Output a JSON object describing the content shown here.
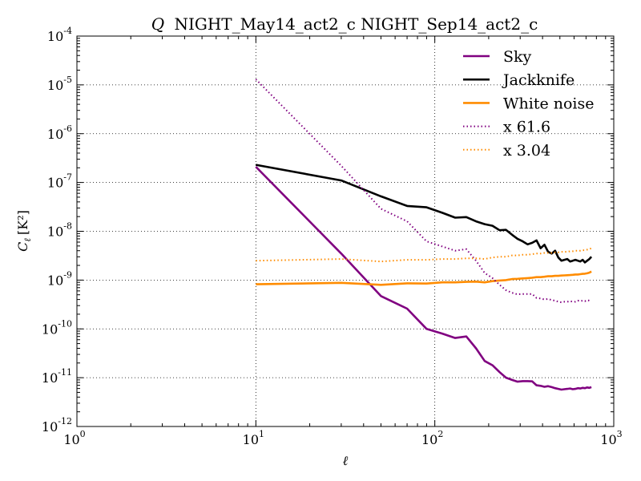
{
  "chart_data": {
    "type": "line",
    "title": "Q NIGHT_May14_act2_c NIGHT_Sep14_act2_c",
    "title_symbol": "Q",
    "title_text": "NIGHT_May14_act2_c NIGHT_Sep14_act2_c",
    "xlabel": "ℓ",
    "ylabel": "C_ℓ [K²]",
    "ylabel_main": "C",
    "ylabel_sub": "ℓ",
    "ylabel_unit": "[K²]",
    "xscale": "log",
    "yscale": "log",
    "xlim": [
      1,
      1000
    ],
    "ylim": [
      1e-12,
      0.0001
    ],
    "x_ticks": [
      {
        "base": "10",
        "exp": "0",
        "value": 1
      },
      {
        "base": "10",
        "exp": "1",
        "value": 10
      },
      {
        "base": "10",
        "exp": "2",
        "value": 100
      },
      {
        "base": "10",
        "exp": "3",
        "value": 1000
      }
    ],
    "y_ticks": [
      {
        "base": "10",
        "exp": "-12",
        "value": 1e-12
      },
      {
        "base": "10",
        "exp": "-11",
        "value": 1e-11
      },
      {
        "base": "10",
        "exp": "-10",
        "value": 1e-10
      },
      {
        "base": "10",
        "exp": "-9",
        "value": 1e-09
      },
      {
        "base": "10",
        "exp": "-8",
        "value": 1e-08
      },
      {
        "base": "10",
        "exp": "-7",
        "value": 1e-07
      },
      {
        "base": "10",
        "exp": "-6",
        "value": 1e-06
      },
      {
        "base": "10",
        "exp": "-5",
        "value": 1e-05
      },
      {
        "base": "10",
        "exp": "-4",
        "value": 0.0001
      }
    ],
    "grid": true,
    "legend_position": "top-right",
    "series": [
      {
        "name": "Sky",
        "color": "#800080",
        "style": "solid",
        "x": [
          10,
          30,
          50,
          70,
          90,
          110,
          130,
          150,
          170,
          190,
          210,
          230,
          250,
          270,
          290,
          310,
          330,
          350,
          370,
          390,
          410,
          430,
          450,
          470,
          490,
          510,
          530,
          550,
          570,
          590,
          610,
          630,
          650,
          670,
          690,
          710,
          730,
          750
        ],
        "y": [
          2.1e-07,
          3.5e-09,
          4.7e-10,
          2.6e-10,
          1e-10,
          8e-11,
          6.5e-11,
          7e-11,
          4e-11,
          2.2e-11,
          1.8e-11,
          1.3e-11,
          1e-11,
          9e-12,
          8.3e-12,
          8.5e-12,
          8.5e-12,
          8.4e-12,
          7e-12,
          6.8e-12,
          6.5e-12,
          6.7e-12,
          6.4e-12,
          6.1e-12,
          5.9e-12,
          5.7e-12,
          5.8e-12,
          5.9e-12,
          6e-12,
          5.8e-12,
          5.9e-12,
          6.1e-12,
          6e-12,
          6.2e-12,
          6.1e-12,
          6.3e-12,
          6.2e-12,
          6.4e-12
        ]
      },
      {
        "name": "Jackknife",
        "color": "#000000",
        "style": "solid",
        "x": [
          10,
          30,
          50,
          70,
          90,
          110,
          130,
          150,
          170,
          190,
          210,
          230,
          250,
          270,
          290,
          310,
          330,
          350,
          370,
          390,
          410,
          430,
          450,
          470,
          490,
          510,
          530,
          550,
          570,
          590,
          610,
          630,
          650,
          670,
          690,
          710,
          730,
          750
        ],
        "y": [
          2.3e-07,
          1.1e-07,
          5.2e-08,
          3.3e-08,
          3.1e-08,
          2.4e-08,
          1.9e-08,
          1.95e-08,
          1.6e-08,
          1.4e-08,
          1.3e-08,
          1.05e-08,
          1.07e-08,
          8.5e-09,
          7e-09,
          6.2e-09,
          5.4e-09,
          5.8e-09,
          6.5e-09,
          4.5e-09,
          5.3e-09,
          3.8e-09,
          3.5e-09,
          4e-09,
          2.9e-09,
          2.5e-09,
          2.6e-09,
          2.7e-09,
          2.4e-09,
          2.5e-09,
          2.6e-09,
          2.5e-09,
          2.4e-09,
          2.6e-09,
          2.3e-09,
          2.5e-09,
          2.7e-09,
          3e-09
        ]
      },
      {
        "name": "White noise",
        "color": "#ff8c00",
        "style": "solid",
        "x": [
          10,
          30,
          50,
          70,
          90,
          110,
          130,
          150,
          170,
          190,
          210,
          230,
          250,
          270,
          290,
          310,
          330,
          350,
          370,
          390,
          410,
          430,
          450,
          470,
          490,
          510,
          530,
          550,
          570,
          590,
          610,
          630,
          650,
          670,
          690,
          710,
          730,
          750
        ],
        "y": [
          8.2e-10,
          8.8e-10,
          8e-10,
          8.6e-10,
          8.5e-10,
          9e-10,
          9e-10,
          9.2e-10,
          9.3e-10,
          9e-10,
          9.5e-10,
          9.8e-10,
          1e-09,
          1.05e-09,
          1.06e-09,
          1.08e-09,
          1.1e-09,
          1.12e-09,
          1.15e-09,
          1.15e-09,
          1.17e-09,
          1.2e-09,
          1.2e-09,
          1.22e-09,
          1.22e-09,
          1.24e-09,
          1.25e-09,
          1.26e-09,
          1.27e-09,
          1.28e-09,
          1.3e-09,
          1.3e-09,
          1.32e-09,
          1.34e-09,
          1.35e-09,
          1.38e-09,
          1.42e-09,
          1.5e-09
        ]
      },
      {
        "name": "x 61.6",
        "color": "#800080",
        "style": "dotted",
        "x": [
          10,
          30,
          50,
          70,
          90,
          110,
          130,
          150,
          170,
          190,
          210,
          230,
          250,
          270,
          290,
          310,
          330,
          350,
          370,
          390,
          410,
          430,
          450,
          470,
          490,
          510,
          530,
          550,
          570,
          590,
          610,
          630,
          650,
          670,
          690,
          710,
          730,
          750
        ],
        "y": [
          1.3e-05,
          2.2e-07,
          2.9e-08,
          1.6e-08,
          6.2e-09,
          4.9e-09,
          4e-09,
          4.3e-09,
          2.5e-09,
          1.4e-09,
          1.1e-09,
          8e-10,
          6.2e-10,
          5.5e-10,
          5.1e-10,
          5.2e-10,
          5.2e-10,
          5.2e-10,
          4.3e-10,
          4.2e-10,
          4e-10,
          4.1e-10,
          3.9e-10,
          3.8e-10,
          3.6e-10,
          3.5e-10,
          3.6e-10,
          3.6e-10,
          3.7e-10,
          3.6e-10,
          3.6e-10,
          3.8e-10,
          3.7e-10,
          3.8e-10,
          3.7e-10,
          3.9e-10,
          3.8e-10,
          3.9e-10
        ]
      },
      {
        "name": "x 3.04",
        "color": "#ff8c00",
        "style": "dotted",
        "x": [
          10,
          30,
          50,
          70,
          90,
          110,
          130,
          150,
          170,
          190,
          210,
          230,
          250,
          270,
          290,
          310,
          330,
          350,
          370,
          390,
          410,
          430,
          450,
          470,
          490,
          510,
          530,
          550,
          570,
          590,
          610,
          630,
          650,
          670,
          690,
          710,
          730,
          750
        ],
        "y": [
          2.5e-09,
          2.7e-09,
          2.4e-09,
          2.6e-09,
          2.6e-09,
          2.7e-09,
          2.7e-09,
          2.8e-09,
          2.8e-09,
          2.7e-09,
          2.9e-09,
          3e-09,
          3e-09,
          3.2e-09,
          3.2e-09,
          3.3e-09,
          3.3e-09,
          3.4e-09,
          3.5e-09,
          3.5e-09,
          3.6e-09,
          3.6e-09,
          3.6e-09,
          3.7e-09,
          3.7e-09,
          3.8e-09,
          3.8e-09,
          3.8e-09,
          3.9e-09,
          3.9e-09,
          4e-09,
          4e-09,
          4e-09,
          4.1e-09,
          4.1e-09,
          4.2e-09,
          4.3e-09,
          4.5e-09
        ]
      }
    ]
  }
}
